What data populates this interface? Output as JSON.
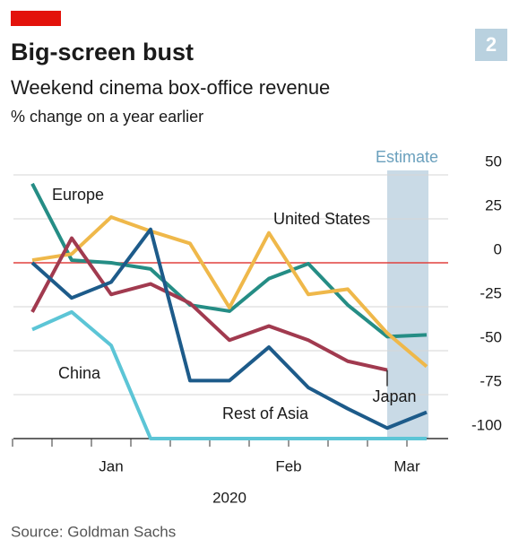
{
  "chart_data": {
    "type": "line",
    "badge": "2",
    "title": "Big-screen bust",
    "subtitle": "Weekend cinema box-office revenue",
    "axis_label": "% change on a year earlier",
    "categories": [
      null,
      null,
      null,
      null,
      null,
      null,
      null,
      null,
      null,
      null,
      null
    ],
    "xticks": [
      {
        "value": 2,
        "label": "Jan"
      },
      {
        "value": 6.5,
        "label": "Feb"
      },
      {
        "value": 9.5,
        "label": "Mar"
      }
    ],
    "x_year": "2020",
    "ylim": [
      -100,
      57
    ],
    "yticks": [
      50,
      25,
      0,
      -25,
      -50,
      -75,
      -100
    ],
    "grid": true,
    "zero_line_color": "#e0413e",
    "estimate": {
      "label": "Estimate",
      "range": [
        9,
        10
      ],
      "color": "#c9dae6"
    },
    "series": [
      {
        "name": "Europe",
        "color": "#258d85",
        "values": [
          45,
          1.5,
          0,
          -3.5,
          -24,
          -27.5,
          -9,
          -0.5,
          -24,
          -42,
          -41
        ]
      },
      {
        "name": "United States",
        "color": "#efb84a",
        "values": [
          1.5,
          5,
          26,
          18,
          11,
          -25.5,
          17,
          -18,
          -15,
          -40,
          -59
        ]
      },
      {
        "name": "Japan",
        "color": "#a13a4f",
        "values": [
          -28,
          14,
          -18,
          -12,
          -23,
          -44,
          -36,
          -44,
          -56,
          -61,
          null
        ]
      },
      {
        "name": "Rest of Asia",
        "color": "#1d5b8a",
        "values": [
          0,
          -20,
          -11,
          19,
          -67,
          -67,
          -48,
          -71,
          -83,
          -94,
          -85
        ]
      },
      {
        "name": "China",
        "color": "#5cc5d6",
        "values": [
          -38,
          -28,
          -47,
          -100,
          -100,
          -100,
          -100,
          -100,
          -100,
          -100,
          -100
        ]
      }
    ],
    "source": "Source: Goldman Sachs"
  }
}
